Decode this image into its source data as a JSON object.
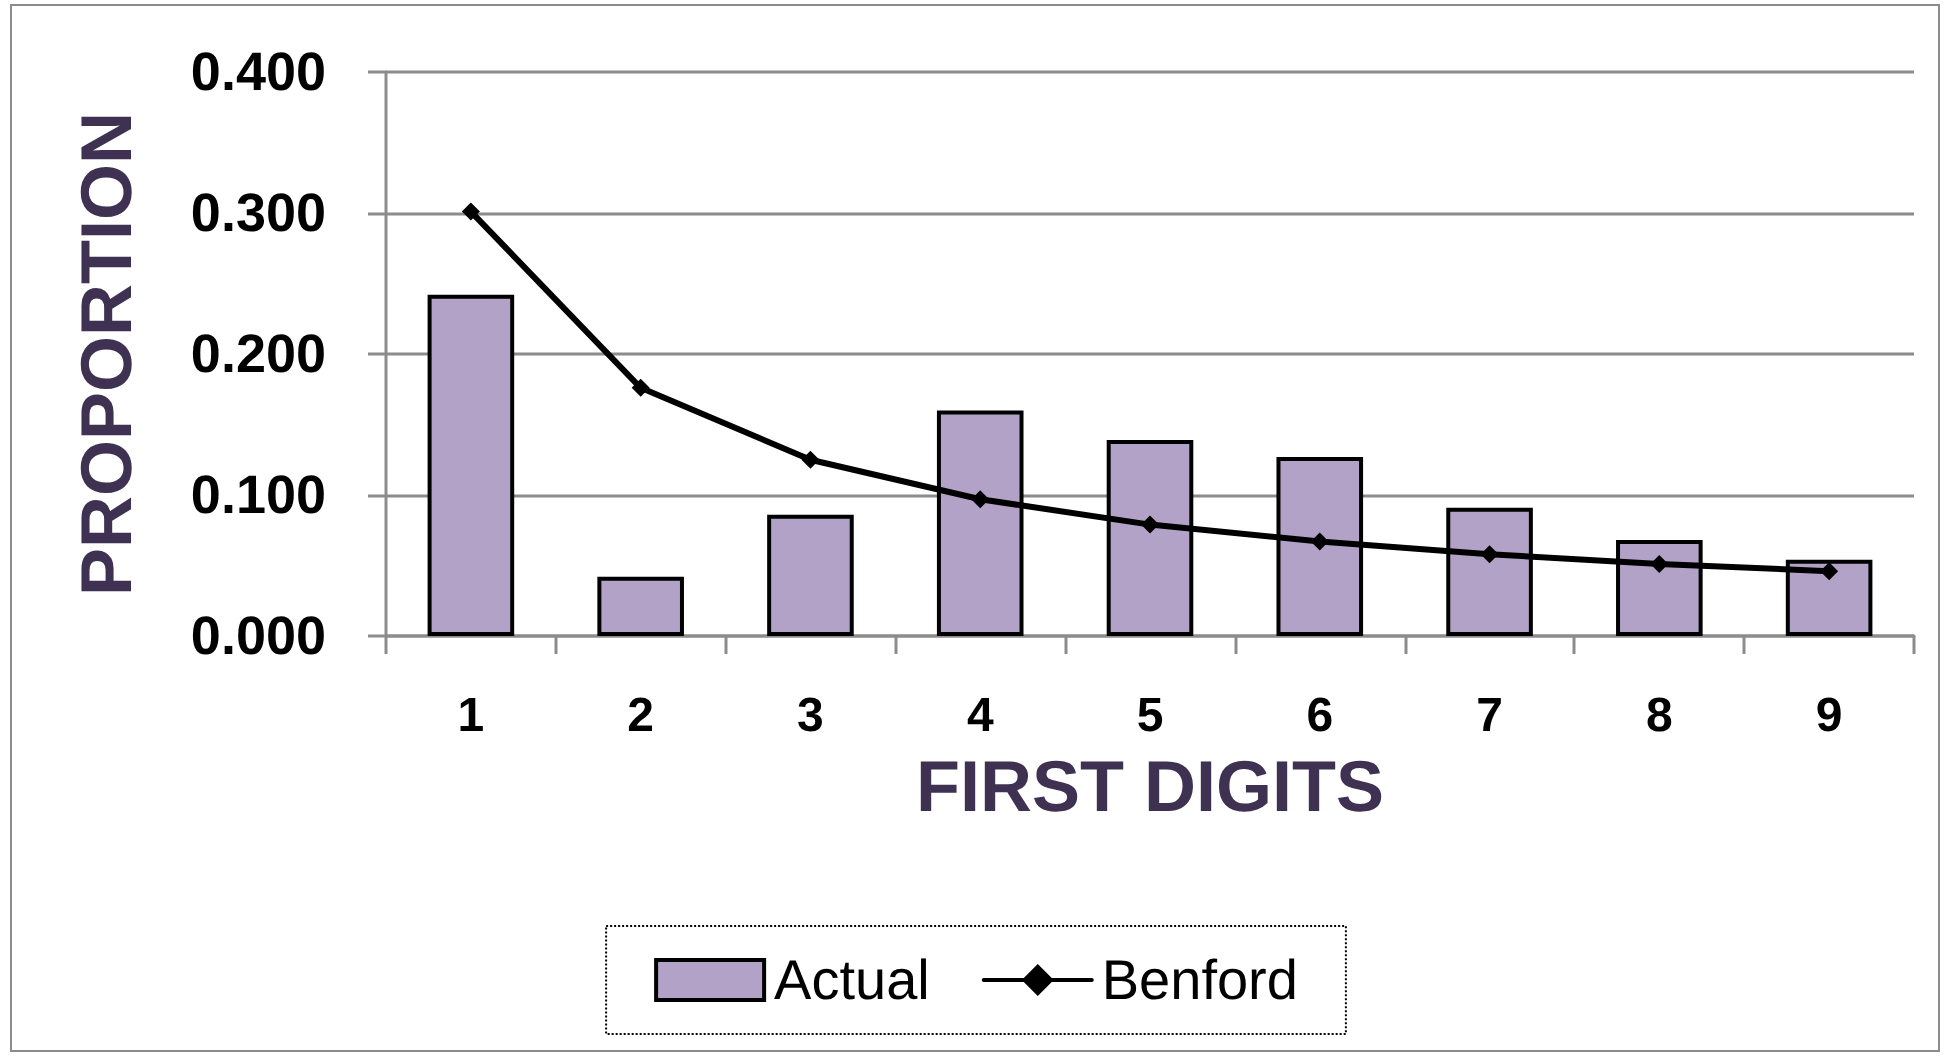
{
  "chart_data": {
    "type": "bar",
    "xlabel": "FIRST DIGITS",
    "ylabel": "PROPORTION",
    "categories": [
      "1",
      "2",
      "3",
      "4",
      "5",
      "6",
      "7",
      "8",
      "9"
    ],
    "series": [
      {
        "name": "Actual",
        "color": "#b3a2c7",
        "values": [
          0.242,
          0.042,
          0.086,
          0.16,
          0.139,
          0.127,
          0.091,
          0.068,
          0.054
        ]
      },
      {
        "name": "Benford",
        "type": "line",
        "color": "#000000",
        "values": [
          0.301,
          0.176,
          0.125,
          0.097,
          0.079,
          0.067,
          0.058,
          0.051,
          0.046
        ]
      }
    ],
    "ylim": [
      0,
      0.4
    ],
    "yticks": [
      {
        "value": 0,
        "label": "0.000"
      },
      {
        "value": 0.1,
        "label": "0.100"
      },
      {
        "value": 0.2,
        "label": "0.200"
      },
      {
        "value": 0.3,
        "label": "0.300"
      },
      {
        "value": 0.4,
        "label": "0.400"
      }
    ],
    "grid": "y",
    "legend": "bottom",
    "marker": "diamond"
  }
}
